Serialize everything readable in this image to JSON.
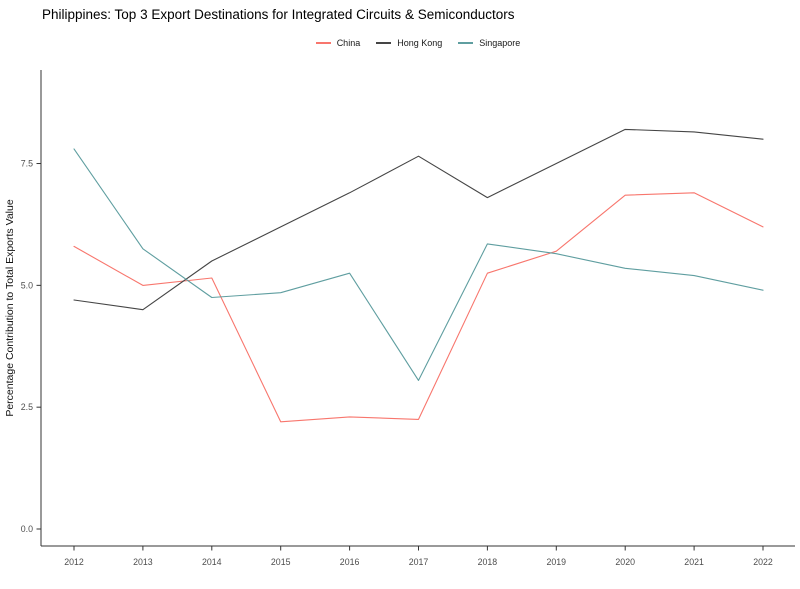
{
  "title": "Philippines: Top 3 Export Destinations for Integrated Circuits & Semiconductors",
  "axis": {
    "line_color": "#333333",
    "tick_label_color": "#4d4d4d",
    "axis_title_color": "#111111"
  },
  "chart_data": {
    "type": "line",
    "title": "Philippines: Top 3 Export Destinations for Integrated Circuits & Semiconductors",
    "x": [
      2012,
      2013,
      2014,
      2015,
      2016,
      2017,
      2018,
      2019,
      2020,
      2021,
      2022
    ],
    "series": [
      {
        "name": "China",
        "color": "#f8766d",
        "values": [
          5.8,
          5.0,
          5.15,
          2.2,
          2.3,
          2.25,
          5.25,
          5.7,
          6.85,
          6.9,
          6.2
        ]
      },
      {
        "name": "Hong Kong",
        "color": "#454545",
        "values": [
          4.7,
          4.5,
          5.5,
          6.2,
          6.9,
          7.65,
          6.8,
          7.5,
          8.2,
          8.15,
          8.0
        ]
      },
      {
        "name": "Singapore",
        "color": "#5f9ea0",
        "values": [
          7.8,
          5.75,
          4.75,
          4.85,
          5.25,
          3.05,
          5.85,
          5.65,
          5.35,
          5.2,
          4.9
        ]
      }
    ],
    "xlabel": "",
    "ylabel": "Percentage Contribution to Total Exports Value",
    "y_ticks": [
      "0.0",
      "2.5",
      "5.0",
      "7.5"
    ],
    "ylim": [
      -0.35,
      9.4
    ],
    "grid": false,
    "legend_position": "top"
  }
}
